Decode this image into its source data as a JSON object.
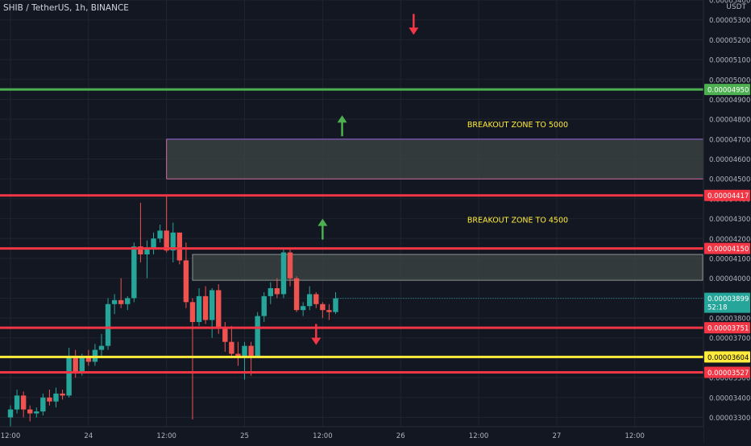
{
  "header": {
    "symbol_title": "SHIB / TetherUS, 1h, BINANCE",
    "currency": "USDT"
  },
  "colors": {
    "background": "#131722",
    "grid": "#1f2430",
    "bull": "#26a69a",
    "bear": "#ef5350",
    "support_resistance_red": "#f23645",
    "breakout_green": "#4caf50",
    "key_level_yellow": "#ffeb3b",
    "zone_fill": "#3d4744",
    "zone_border_top": "#9c6ade",
    "zone_border_bottom": "#d46ba8",
    "zone_label": "#ffeb3b",
    "price_tag_text_dark": "#000000",
    "last_price_tag": "#26a69a"
  },
  "chart_data": {
    "type": "candlestick",
    "title": "SHIB / TetherUS, 1h, BINANCE",
    "ylabel": "USDT",
    "ylim": [
      3.2534e-05,
      5.4e-05
    ],
    "y_ticks": [
      "0.00005400",
      "0.00005300",
      "0.00005200",
      "0.00005100",
      "0.00005000",
      "0.00004900",
      "0.00004800",
      "0.00004700",
      "0.00004600",
      "0.00004500",
      "0.00004400",
      "0.00004300",
      "0.00004200",
      "0.00004100",
      "0.00004000",
      "0.00003900",
      "0.00003800",
      "0.00003700",
      "0.00003600",
      "0.00003500",
      "0.00003400",
      "0.00003300"
    ],
    "x_ticks": [
      {
        "label": "12:00",
        "slot": 0
      },
      {
        "label": "24",
        "slot": 12
      },
      {
        "label": "12:00",
        "slot": 24
      },
      {
        "label": "25",
        "slot": 36
      },
      {
        "label": "12:00",
        "slot": 48
      },
      {
        "label": "26",
        "slot": 60
      },
      {
        "label": "12:00",
        "slot": 72
      },
      {
        "label": "27",
        "slot": 84
      },
      {
        "label": "12:00",
        "slot": 96
      }
    ],
    "candles": [
      {
        "o": 3.3e-05,
        "h": 3.36e-05,
        "l": 3.25e-05,
        "c": 3.34e-05
      },
      {
        "o": 3.34e-05,
        "h": 3.44e-05,
        "l": 3.32e-05,
        "c": 3.41e-05
      },
      {
        "o": 3.41e-05,
        "h": 3.43e-05,
        "l": 3.3e-05,
        "c": 3.34e-05
      },
      {
        "o": 3.34e-05,
        "h": 3.36e-05,
        "l": 3.28e-05,
        "c": 3.32e-05
      },
      {
        "o": 3.32e-05,
        "h": 3.35e-05,
        "l": 3.3e-05,
        "c": 3.33e-05
      },
      {
        "o": 3.33e-05,
        "h": 3.42e-05,
        "l": 3.31e-05,
        "c": 3.4e-05
      },
      {
        "o": 3.4e-05,
        "h": 3.44e-05,
        "l": 3.36e-05,
        "c": 3.38e-05
      },
      {
        "o": 3.38e-05,
        "h": 3.45e-05,
        "l": 3.35e-05,
        "c": 3.42e-05
      },
      {
        "o": 3.42e-05,
        "h": 3.44e-05,
        "l": 3.39e-05,
        "c": 3.41e-05
      },
      {
        "o": 3.41e-05,
        "h": 3.65e-05,
        "l": 3.4e-05,
        "c": 3.61e-05
      },
      {
        "o": 3.61e-05,
        "h": 3.64e-05,
        "l": 3.5e-05,
        "c": 3.53e-05
      },
      {
        "o": 3.53e-05,
        "h": 3.62e-05,
        "l": 3.51e-05,
        "c": 3.6e-05
      },
      {
        "o": 3.6e-05,
        "h": 3.64e-05,
        "l": 3.56e-05,
        "c": 3.58e-05
      },
      {
        "o": 3.58e-05,
        "h": 3.67e-05,
        "l": 3.56e-05,
        "c": 3.64e-05
      },
      {
        "o": 3.64e-05,
        "h": 3.72e-05,
        "l": 3.61e-05,
        "c": 3.66e-05
      },
      {
        "o": 3.66e-05,
        "h": 3.9e-05,
        "l": 3.64e-05,
        "c": 3.87e-05
      },
      {
        "o": 3.87e-05,
        "h": 3.92e-05,
        "l": 3.82e-05,
        "c": 3.89e-05
      },
      {
        "o": 3.89e-05,
        "h": 4e-05,
        "l": 3.85e-05,
        "c": 3.87e-05
      },
      {
        "o": 3.87e-05,
        "h": 3.91e-05,
        "l": 3.84e-05,
        "c": 3.9e-05
      },
      {
        "o": 3.9e-05,
        "h": 4.18e-05,
        "l": 3.88e-05,
        "c": 4.16e-05
      },
      {
        "o": 4.16e-05,
        "h": 4.38e-05,
        "l": 4.08e-05,
        "c": 4.12e-05
      },
      {
        "o": 4.12e-05,
        "h": 4.19e-05,
        "l": 4e-05,
        "c": 4.15e-05
      },
      {
        "o": 4.15e-05,
        "h": 4.23e-05,
        "l": 4.12e-05,
        "c": 4.2e-05
      },
      {
        "o": 4.2e-05,
        "h": 4.27e-05,
        "l": 4.18e-05,
        "c": 4.24e-05
      },
      {
        "o": 4.24e-05,
        "h": 4.42e-05,
        "l": 4.13e-05,
        "c": 4.14e-05
      },
      {
        "o": 4.14e-05,
        "h": 4.28e-05,
        "l": 4.08e-05,
        "c": 4.23e-05
      },
      {
        "o": 4.23e-05,
        "h": 4.23e-05,
        "l": 4.07e-05,
        "c": 4.09e-05
      },
      {
        "o": 4.09e-05,
        "h": 4.18e-05,
        "l": 3.85e-05,
        "c": 3.88e-05
      },
      {
        "o": 3.88e-05,
        "h": 3.9e-05,
        "l": 3.29e-05,
        "c": 3.78e-05
      },
      {
        "o": 3.78e-05,
        "h": 3.95e-05,
        "l": 3.76e-05,
        "c": 3.91e-05
      },
      {
        "o": 3.91e-05,
        "h": 3.96e-05,
        "l": 3.77e-05,
        "c": 3.79e-05
      },
      {
        "o": 3.79e-05,
        "h": 3.95e-05,
        "l": 3.7e-05,
        "c": 3.94e-05
      },
      {
        "o": 3.94e-05,
        "h": 3.97e-05,
        "l": 3.72e-05,
        "c": 3.75e-05
      },
      {
        "o": 3.75e-05,
        "h": 3.78e-05,
        "l": 3.63e-05,
        "c": 3.68e-05
      },
      {
        "o": 3.68e-05,
        "h": 3.76e-05,
        "l": 3.6e-05,
        "c": 3.62e-05
      },
      {
        "o": 3.62e-05,
        "h": 3.68e-05,
        "l": 3.56e-05,
        "c": 3.61e-05
      },
      {
        "o": 3.61e-05,
        "h": 3.68e-05,
        "l": 3.49e-05,
        "c": 3.66e-05
      },
      {
        "o": 3.66e-05,
        "h": 3.68e-05,
        "l": 3.51e-05,
        "c": 3.61e-05
      },
      {
        "o": 3.61e-05,
        "h": 3.83e-05,
        "l": 3.6e-05,
        "c": 3.81e-05
      },
      {
        "o": 3.81e-05,
        "h": 3.93e-05,
        "l": 3.78e-05,
        "c": 3.91e-05
      },
      {
        "o": 3.91e-05,
        "h": 3.98e-05,
        "l": 3.87e-05,
        "c": 3.95e-05
      },
      {
        "o": 3.95e-05,
        "h": 4e-05,
        "l": 3.9e-05,
        "c": 3.92e-05
      },
      {
        "o": 3.92e-05,
        "h": 4.15e-05,
        "l": 3.9e-05,
        "c": 4.13e-05
      },
      {
        "o": 4.13e-05,
        "h": 4.15e-05,
        "l": 3.96e-05,
        "c": 4e-05
      },
      {
        "o": 4e-05,
        "h": 4.01e-05,
        "l": 3.83e-05,
        "c": 3.84e-05
      },
      {
        "o": 3.84e-05,
        "h": 3.88e-05,
        "l": 3.81e-05,
        "c": 3.86e-05
      },
      {
        "o": 3.86e-05,
        "h": 3.96e-05,
        "l": 3.84e-05,
        "c": 3.92e-05
      },
      {
        "o": 3.92e-05,
        "h": 3.93e-05,
        "l": 3.85e-05,
        "c": 3.87e-05
      },
      {
        "o": 3.87e-05,
        "h": 3.88e-05,
        "l": 3.8e-05,
        "c": 3.84e-05
      },
      {
        "o": 3.84e-05,
        "h": 3.87e-05,
        "l": 3.79e-05,
        "c": 3.83e-05
      },
      {
        "o": 3.83e-05,
        "h": 3.93e-05,
        "l": 3.82e-05,
        "c": 3.899e-05
      }
    ],
    "horizontal_levels": [
      {
        "value": 4.95e-05,
        "label": "0.00004950",
        "color": "#4caf50"
      },
      {
        "value": 4.417e-05,
        "label": "0.00004417",
        "color": "#f23645"
      },
      {
        "value": 4.15e-05,
        "label": "0.00004150",
        "color": "#f23645"
      },
      {
        "value": 3.751e-05,
        "label": "0.00003751",
        "color": "#f23645"
      },
      {
        "value": 3.604e-05,
        "label": "0.00003604",
        "color": "#ffeb3b"
      },
      {
        "value": 3.527e-05,
        "label": "0.00003527",
        "color": "#f23645"
      }
    ],
    "last_price": {
      "label": "0.00003899",
      "countdown": "52:18"
    },
    "zones": [
      {
        "top": 4.7e-05,
        "bottom": 4.5e-05,
        "start_slot": 24
      },
      {
        "top": 4.12e-05,
        "bottom": 3.99e-05,
        "start_slot": 28
      }
    ],
    "annotations": [
      {
        "text": "BREAKOUT ZONE TO 5000",
        "slot": 78,
        "value": 4.76e-05
      },
      {
        "text": "BREAKOUT ZONE TO 4500",
        "slot": 78,
        "value": 4.28e-05
      }
    ],
    "arrows": [
      {
        "direction": "down",
        "slot": 62,
        "value": 5.33e-05,
        "color": "#f23645"
      },
      {
        "direction": "up",
        "slot": 51,
        "value": 4.82e-05,
        "color": "#4caf50"
      },
      {
        "direction": "up",
        "slot": 48,
        "value": 4.3e-05,
        "color": "#4caf50"
      },
      {
        "direction": "down",
        "slot": 47,
        "value": 3.77e-05,
        "color": "#f23645"
      }
    ]
  }
}
